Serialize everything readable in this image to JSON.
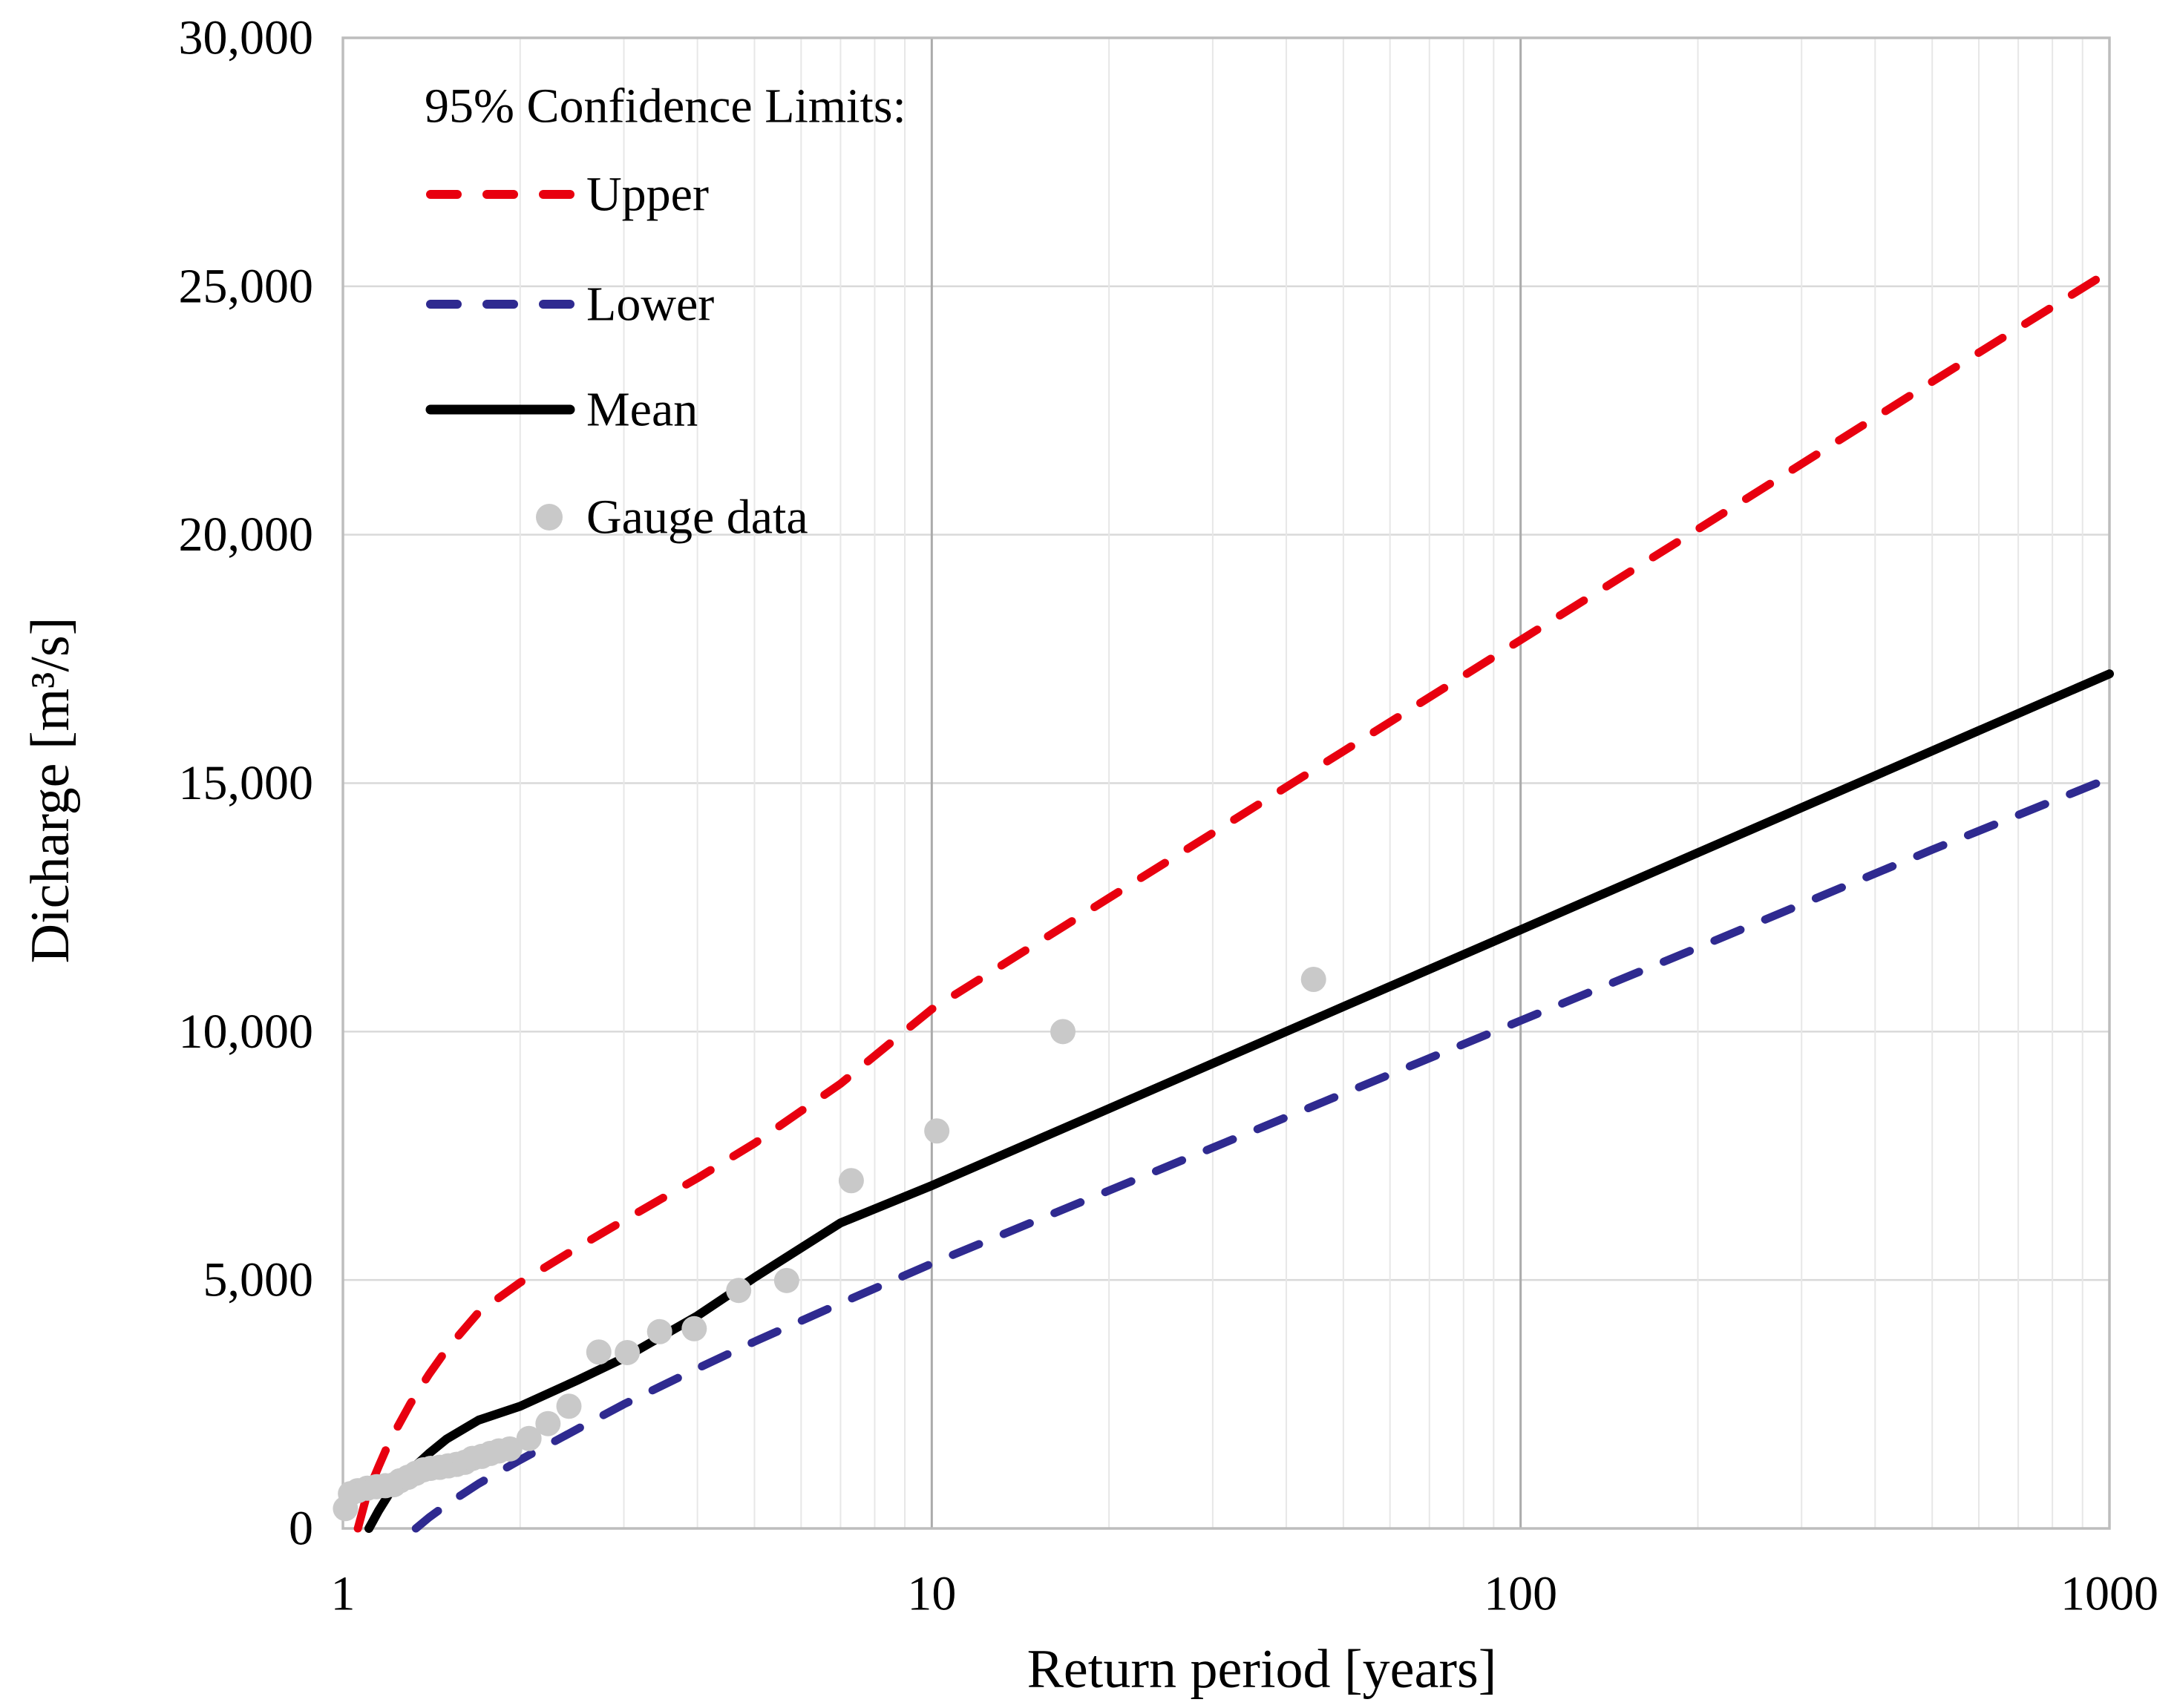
{
  "figure": {
    "background": "#ffffff",
    "y_axis": {
      "title": "Dicharge [m³/s]",
      "tick_labels": [
        "0",
        "5,000",
        "10,000",
        "15,000",
        "20,000",
        "25,000",
        "30,000"
      ],
      "tick_values": [
        0,
        5000,
        10000,
        15000,
        20000,
        25000,
        30000
      ],
      "min": 0,
      "max": 30000
    },
    "x_axis": {
      "title": "Return period [years]",
      "tick_labels": [
        "1",
        "10",
        "100",
        "1000"
      ],
      "tick_values": [
        1,
        10,
        100,
        1000
      ],
      "minor_tick_values": [
        2,
        3,
        4,
        5,
        6,
        7,
        8,
        9,
        20,
        30,
        40,
        50,
        60,
        70,
        80,
        90,
        200,
        300,
        400,
        500,
        600,
        700,
        800,
        900
      ],
      "major_grid_values": [
        10,
        100
      ],
      "min": 1,
      "max": 1000,
      "scale": "log"
    },
    "legend": {
      "header": "95% Confidence Limits:",
      "items": [
        {
          "label": "Upper",
          "swatch": "dashed",
          "color": "#e8000f"
        },
        {
          "label": "Lower",
          "swatch": "dashed",
          "color": "#2f2a90"
        },
        {
          "label": "Mean",
          "swatch": "solid",
          "color": "#000000"
        },
        {
          "label": "Gauge data",
          "swatch": "dot",
          "color": "#c9c9c9"
        }
      ]
    },
    "colors": {
      "upper": "#e8000f",
      "lower": "#2f2a90",
      "mean": "#000000",
      "gauge": "#c9c9c9",
      "grid_horizontal": "#d9d9d9",
      "grid_minor": "#e7e7e7",
      "grid_major": "#ababab",
      "plot_border": "#bdbdbd",
      "text": "#000000"
    }
  },
  "chart_data": {
    "type": "line",
    "x_scale": "log",
    "xlim": [
      1,
      1000
    ],
    "ylim": [
      0,
      30000
    ],
    "xlabel": "Return period [years]",
    "ylabel": "Dicharge [m³/s]",
    "grid": true,
    "legend_position": "top-left-inside",
    "series": [
      {
        "name": "Upper",
        "kind": "line",
        "style": "dashed",
        "color": "#e8000f",
        "points": [
          [
            1.06,
            0
          ],
          [
            1.1,
            700
          ],
          [
            1.15,
            1250
          ],
          [
            1.2,
            1750
          ],
          [
            1.3,
            2500
          ],
          [
            1.4,
            3100
          ],
          [
            1.5,
            3600
          ],
          [
            1.7,
            4350
          ],
          [
            2,
            4950
          ],
          [
            2.5,
            5650
          ],
          [
            3,
            6200
          ],
          [
            4,
            7050
          ],
          [
            5,
            7750
          ],
          [
            7,
            8950
          ],
          [
            10,
            10450
          ],
          [
            20,
            12690
          ],
          [
            50,
            15640
          ],
          [
            100,
            17880
          ],
          [
            200,
            20110
          ],
          [
            500,
            23080
          ],
          [
            1000,
            25300
          ]
        ]
      },
      {
        "name": "Lower",
        "kind": "line",
        "style": "dashed",
        "color": "#2f2a90",
        "points": [
          [
            1.33,
            0
          ],
          [
            1.4,
            220
          ],
          [
            1.5,
            480
          ],
          [
            1.7,
            900
          ],
          [
            2,
            1380
          ],
          [
            2.5,
            2000
          ],
          [
            3,
            2500
          ],
          [
            4,
            3220
          ],
          [
            5,
            3760
          ],
          [
            7,
            4530
          ],
          [
            10,
            5330
          ],
          [
            20,
            6800
          ],
          [
            50,
            8750
          ],
          [
            100,
            10220
          ],
          [
            200,
            11690
          ],
          [
            500,
            13660
          ],
          [
            1000,
            15100
          ]
        ]
      },
      {
        "name": "Mean",
        "kind": "line",
        "style": "solid",
        "color": "#000000",
        "points": [
          [
            1.107,
            0
          ],
          [
            1.15,
            360
          ],
          [
            1.2,
            710
          ],
          [
            1.3,
            1160
          ],
          [
            1.4,
            1510
          ],
          [
            1.5,
            1800
          ],
          [
            1.7,
            2180
          ],
          [
            2,
            2460
          ],
          [
            2.5,
            2980
          ],
          [
            3,
            3430
          ],
          [
            4,
            4280
          ],
          [
            5,
            5050
          ],
          [
            7,
            6150
          ],
          [
            10,
            6900
          ],
          [
            20,
            8450
          ],
          [
            50,
            10500
          ],
          [
            100,
            12050
          ],
          [
            200,
            13600
          ],
          [
            500,
            15650
          ],
          [
            1000,
            17200
          ]
        ]
      },
      {
        "name": "Gauge data",
        "kind": "scatter",
        "color": "#c9c9c9",
        "marker_radius": 17,
        "points": [
          [
            1.01,
            400
          ],
          [
            1.03,
            700
          ],
          [
            1.06,
            760
          ],
          [
            1.1,
            810
          ],
          [
            1.14,
            840
          ],
          [
            1.18,
            860
          ],
          [
            1.22,
            880
          ],
          [
            1.25,
            960
          ],
          [
            1.29,
            1030
          ],
          [
            1.33,
            1110
          ],
          [
            1.37,
            1180
          ],
          [
            1.41,
            1210
          ],
          [
            1.46,
            1230
          ],
          [
            1.51,
            1260
          ],
          [
            1.56,
            1290
          ],
          [
            1.61,
            1330
          ],
          [
            1.66,
            1410
          ],
          [
            1.72,
            1450
          ],
          [
            1.78,
            1510
          ],
          [
            1.84,
            1560
          ],
          [
            1.92,
            1600
          ],
          [
            2.07,
            1810
          ],
          [
            2.23,
            2110
          ],
          [
            2.42,
            2460
          ],
          [
            2.72,
            3550
          ],
          [
            3.04,
            3540
          ],
          [
            3.45,
            3960
          ],
          [
            3.95,
            4020
          ],
          [
            4.7,
            4790
          ],
          [
            5.67,
            4990
          ],
          [
            7.3,
            7000
          ],
          [
            10.2,
            8000
          ],
          [
            16.7,
            10000
          ],
          [
            44.5,
            11050
          ]
        ]
      }
    ]
  }
}
